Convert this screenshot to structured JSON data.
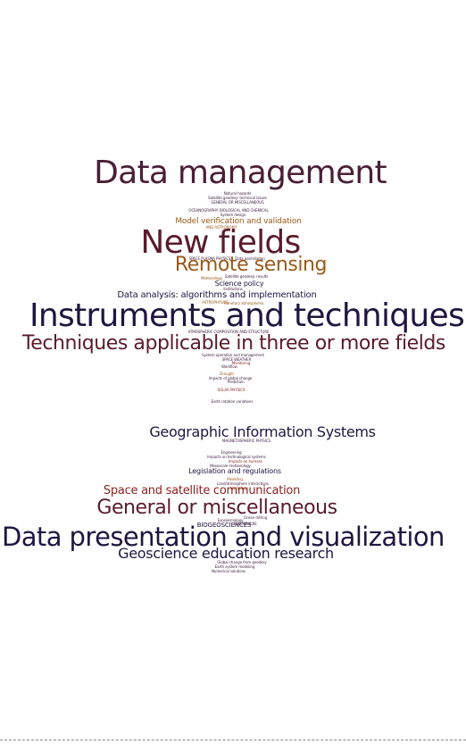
{
  "word_cloud": {
    "words": [
      {
        "text": "Data management",
        "color": "#4a1f36"
      },
      {
        "text": "Natural hazards",
        "color": "#3b1d3c"
      },
      {
        "text": "Satellite geodesy: technical issues",
        "color": "#3b1d3c"
      },
      {
        "text": "GENERAL OR MISCELLANEOUS",
        "color": "#3b1d3c"
      },
      {
        "text": "OCEANOGRAPHY: BIOLOGICAL AND CHEMICAL",
        "color": "#3b1d3c"
      },
      {
        "text": "System design",
        "color": "#3b1d3c"
      },
      {
        "text": "Model verification and validation",
        "color": "#9a5a1a"
      },
      {
        "text": "AND ASTRONOMY",
        "color": "#9a5a1a"
      },
      {
        "text": "New fields",
        "color": "#5a1b2a"
      },
      {
        "text": "SPACE PLASMA PHYSICS",
        "color": "#3b1d3c"
      },
      {
        "text": "Data assimilation",
        "color": "#3b1d3c"
      },
      {
        "text": "Remote sensing",
        "color": "#9a5a1a"
      },
      {
        "text": "Meteorology",
        "color": "#9a5a1a"
      },
      {
        "text": "Satellite geodesy: results",
        "color": "#3b1d3c"
      },
      {
        "text": "Science policy",
        "color": "#1f1640"
      },
      {
        "text": "Institutions",
        "color": "#3b1d3c"
      },
      {
        "text": "Data analysis: algorithms and implementation",
        "color": "#1f1640"
      },
      {
        "text": "ASTROPHYSICS",
        "color": "#9a5a1a"
      },
      {
        "text": "Planetary atmospheres",
        "color": "#9a5a1a"
      },
      {
        "text": "Instruments and techniques",
        "color": "#1f1640"
      },
      {
        "text": "ATMOSPHERIC COMPOSITION AND STRUCTURE",
        "color": "#3b1d3c"
      },
      {
        "text": "Techniques applicable in three or more fields",
        "color": "#5a1b2a"
      },
      {
        "text": "System operation and management",
        "color": "#3b1d3c"
      },
      {
        "text": "SPACE WEATHER",
        "color": "#3b1d3c"
      },
      {
        "text": "Monitoring",
        "color": "#8b1e1e"
      },
      {
        "text": "Workflow",
        "color": "#3b1d3c"
      },
      {
        "text": "Drought",
        "color": "#9a5a1a"
      },
      {
        "text": "Impacts of global change",
        "color": "#3b1d3c"
      },
      {
        "text": "Prediction",
        "color": "#3b1d3c"
      },
      {
        "text": "SOLAR PHYSICS",
        "color": "#8b1e1e"
      },
      {
        "text": "Earth rotation variations",
        "color": "#3b1d3c"
      },
      {
        "text": "Geographic Information Systems",
        "color": "#1f1640"
      },
      {
        "text": "MAGNETOSPHERIC PHYSICS",
        "color": "#3b1d3c"
      },
      {
        "text": "Engineering",
        "color": "#3b1d3c"
      },
      {
        "text": "Impacts on technological systems",
        "color": "#3b1d3c"
      },
      {
        "text": "Impacts on humans",
        "color": "#8b1e1e"
      },
      {
        "text": "Mesoscale meteorology",
        "color": "#3b1d3c"
      },
      {
        "text": "Legislation and regulations",
        "color": "#1f1640"
      },
      {
        "text": "Modeling",
        "color": "#9a5a1a"
      },
      {
        "text": "Land/atmosphere interactions",
        "color": "#3b1d3c"
      },
      {
        "text": "Hydrology",
        "color": "#9a5a1a"
      },
      {
        "text": "Space and satellite communication",
        "color": "#8b1e1e"
      },
      {
        "text": "General or miscellaneous",
        "color": "#5a1b2a"
      },
      {
        "text": "Exoseismology",
        "color": "#3b1d3c"
      },
      {
        "text": "Ocean drilling",
        "color": "#3b1d3c"
      },
      {
        "text": "BIOGEOSCIENCES",
        "color": "#1f1640"
      },
      {
        "text": "IONOSPHERE",
        "color": "#3b1d3c"
      },
      {
        "text": "Data presentation and visualization",
        "color": "#1f1640"
      },
      {
        "text": "Geoscience education research",
        "color": "#1f1640"
      },
      {
        "text": "Global change from geodesy",
        "color": "#3b1d3c"
      },
      {
        "text": "Earth system modeling",
        "color": "#3b1d3c"
      },
      {
        "text": "Numerical solutions",
        "color": "#3b1d3c"
      }
    ]
  }
}
